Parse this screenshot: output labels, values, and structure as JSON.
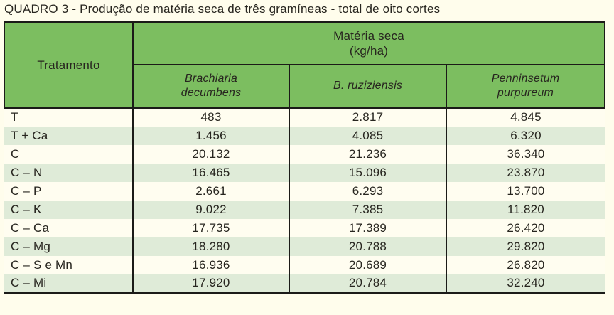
{
  "title": "QUADRO 3 - Produção de matéria seca de três gramíneas - total de oito cortes",
  "table": {
    "row_header": "Tratamento",
    "group_header": "Matéria seca\n(kg/ha)",
    "columns": [
      "Brachiaria\ndecumbens",
      "B. ruziziensis",
      "Penninsetum\npurpureum"
    ],
    "column_names_full": [
      "Brachiaria decumbens",
      "B. ruziziensis",
      "Penninsetum purpureum"
    ],
    "rows": [
      {
        "label": "T",
        "values": [
          "483",
          "2.817",
          "4.845"
        ]
      },
      {
        "label": "T + Ca",
        "values": [
          "1.456",
          "4.085",
          "6.320"
        ]
      },
      {
        "label": "C",
        "values": [
          "20.132",
          "21.236",
          "36.340"
        ]
      },
      {
        "label": "C – N",
        "values": [
          "16.465",
          "15.096",
          "23.870"
        ]
      },
      {
        "label": "C – P",
        "values": [
          "2.661",
          "6.293",
          "13.700"
        ]
      },
      {
        "label": "C – K",
        "values": [
          "9.022",
          "7.385",
          "11.820"
        ]
      },
      {
        "label": "C – Ca",
        "values": [
          "17.735",
          "17.389",
          "26.420"
        ]
      },
      {
        "label": "C – Mg",
        "values": [
          "18.280",
          "20.788",
          "29.820"
        ]
      },
      {
        "label": "C – S e Mn",
        "values": [
          "16.936",
          "20.689",
          "26.820"
        ]
      },
      {
        "label": "C – Mi",
        "values": [
          "17.920",
          "20.784",
          "32.240"
        ]
      }
    ]
  },
  "colors": {
    "page_background": "#fffdec",
    "header_green": "#7cbe60",
    "row_light_green": "#dfebd8",
    "row_cream": "#fffdf0",
    "border_black": "#1b1b18",
    "text": "#27251f"
  }
}
